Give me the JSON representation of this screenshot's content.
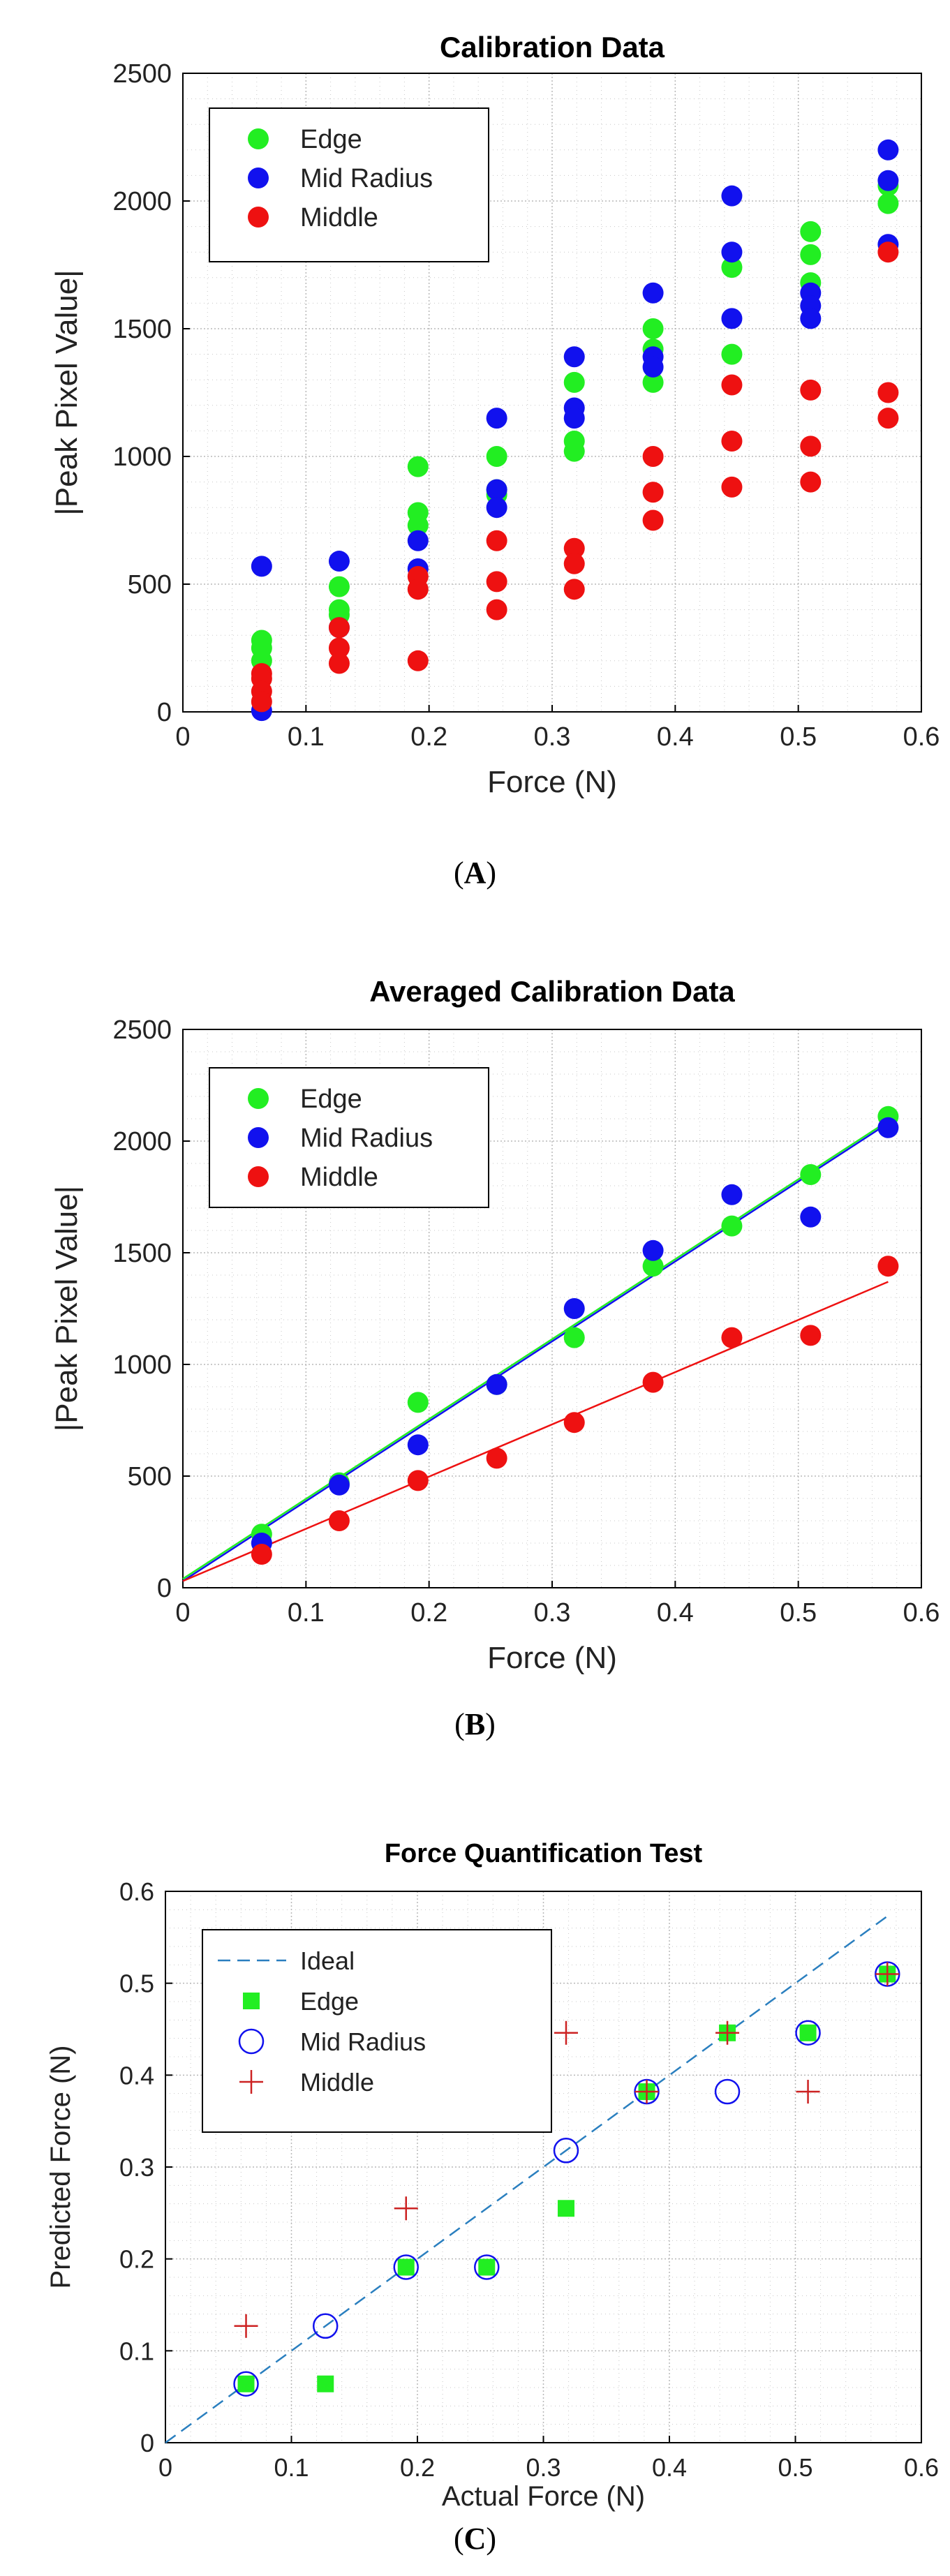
{
  "chart_data": [
    {
      "id": "A",
      "type": "scatter",
      "title": "Calibration Data",
      "xlabel": "Force (N)",
      "ylabel": "|Peak Pixel Value|",
      "xlim": [
        0,
        0.6
      ],
      "ylim": [
        0,
        2500
      ],
      "xticks": [
        "0",
        "0.1",
        "0.2",
        "0.3",
        "0.4",
        "0.5",
        "0.6"
      ],
      "yticks": [
        "0",
        "500",
        "1000",
        "1500",
        "2000",
        "2500"
      ],
      "grid": true,
      "legend_position": "top-left",
      "series": [
        {
          "name": "Edge",
          "color": "#22ee22",
          "marker": "filled-circle",
          "points": [
            [
              0.064,
              280
            ],
            [
              0.064,
              250
            ],
            [
              0.064,
              200
            ],
            [
              0.127,
              490
            ],
            [
              0.127,
              400
            ],
            [
              0.127,
              380
            ],
            [
              0.191,
              960
            ],
            [
              0.191,
              780
            ],
            [
              0.191,
              730
            ],
            [
              0.255,
              1000
            ],
            [
              0.255,
              870
            ],
            [
              0.255,
              850
            ],
            [
              0.318,
              1290
            ],
            [
              0.318,
              1060
            ],
            [
              0.318,
              1020
            ],
            [
              0.382,
              1500
            ],
            [
              0.382,
              1420
            ],
            [
              0.382,
              1290
            ],
            [
              0.446,
              1740
            ],
            [
              0.446,
              1400
            ],
            [
              0.51,
              1880
            ],
            [
              0.51,
              1790
            ],
            [
              0.51,
              1680
            ],
            [
              0.573,
              2060
            ],
            [
              0.573,
              1990
            ]
          ]
        },
        {
          "name": "Mid Radius",
          "color": "#1111ee",
          "marker": "filled-circle",
          "points": [
            [
              0.064,
              570
            ],
            [
              0.064,
              5
            ],
            [
              0.127,
              590
            ],
            [
              0.127,
              330
            ],
            [
              0.191,
              670
            ],
            [
              0.191,
              560
            ],
            [
              0.255,
              1150
            ],
            [
              0.255,
              870
            ],
            [
              0.255,
              800
            ],
            [
              0.318,
              1390
            ],
            [
              0.318,
              1190
            ],
            [
              0.318,
              1150
            ],
            [
              0.382,
              1640
            ],
            [
              0.382,
              1390
            ],
            [
              0.382,
              1350
            ],
            [
              0.446,
              2020
            ],
            [
              0.446,
              1800
            ],
            [
              0.446,
              1540
            ],
            [
              0.51,
              1640
            ],
            [
              0.51,
              1590
            ],
            [
              0.51,
              1540
            ],
            [
              0.573,
              2200
            ],
            [
              0.573,
              2080
            ],
            [
              0.573,
              1830
            ]
          ]
        },
        {
          "name": "Middle",
          "color": "#ee1111",
          "marker": "filled-circle",
          "points": [
            [
              0.064,
              150
            ],
            [
              0.064,
              130
            ],
            [
              0.064,
              80
            ],
            [
              0.064,
              40
            ],
            [
              0.127,
              330
            ],
            [
              0.127,
              250
            ],
            [
              0.127,
              190
            ],
            [
              0.191,
              530
            ],
            [
              0.191,
              480
            ],
            [
              0.191,
              200
            ],
            [
              0.255,
              670
            ],
            [
              0.255,
              510
            ],
            [
              0.255,
              400
            ],
            [
              0.318,
              640
            ],
            [
              0.318,
              580
            ],
            [
              0.318,
              480
            ],
            [
              0.382,
              1000
            ],
            [
              0.382,
              860
            ],
            [
              0.382,
              750
            ],
            [
              0.446,
              1280
            ],
            [
              0.446,
              1060
            ],
            [
              0.446,
              880
            ],
            [
              0.51,
              1260
            ],
            [
              0.51,
              1040
            ],
            [
              0.51,
              900
            ],
            [
              0.573,
              1800
            ],
            [
              0.573,
              1250
            ],
            [
              0.573,
              1150
            ]
          ]
        }
      ]
    },
    {
      "id": "B",
      "type": "scatter",
      "title": "Averaged Calibration Data",
      "xlabel": "Force (N)",
      "ylabel": "|Peak Pixel Value|",
      "xlim": [
        0,
        0.6
      ],
      "ylim": [
        0,
        2500
      ],
      "xticks": [
        "0",
        "0.1",
        "0.2",
        "0.3",
        "0.4",
        "0.5",
        "0.6"
      ],
      "yticks": [
        "0",
        "500",
        "1000",
        "1500",
        "2000",
        "2500"
      ],
      "grid": true,
      "legend_position": "top-left",
      "series": [
        {
          "name": "Edge",
          "color": "#22ee22",
          "marker": "filled-circle",
          "points": [
            [
              0.064,
              240
            ],
            [
              0.127,
              470
            ],
            [
              0.191,
              830
            ],
            [
              0.255,
              910
            ],
            [
              0.318,
              1120
            ],
            [
              0.382,
              1440
            ],
            [
              0.446,
              1620
            ],
            [
              0.51,
              1850
            ],
            [
              0.573,
              2110
            ]
          ],
          "fit": [
            [
              0,
              40
            ],
            [
              0.573,
              2090
            ]
          ]
        },
        {
          "name": "Mid Radius",
          "color": "#1111ee",
          "marker": "filled-circle",
          "points": [
            [
              0.064,
              200
            ],
            [
              0.127,
              460
            ],
            [
              0.191,
              640
            ],
            [
              0.255,
              910
            ],
            [
              0.318,
              1250
            ],
            [
              0.382,
              1510
            ],
            [
              0.446,
              1760
            ],
            [
              0.51,
              1660
            ],
            [
              0.573,
              2060
            ]
          ],
          "fit": [
            [
              0,
              30
            ],
            [
              0.573,
              2080
            ]
          ]
        },
        {
          "name": "Middle",
          "color": "#ee1111",
          "marker": "filled-circle",
          "points": [
            [
              0.064,
              150
            ],
            [
              0.127,
              300
            ],
            [
              0.191,
              480
            ],
            [
              0.255,
              580
            ],
            [
              0.318,
              740
            ],
            [
              0.382,
              920
            ],
            [
              0.446,
              1120
            ],
            [
              0.51,
              1130
            ],
            [
              0.573,
              1440
            ]
          ],
          "fit": [
            [
              0,
              30
            ],
            [
              0.573,
              1370
            ]
          ]
        }
      ]
    },
    {
      "id": "C",
      "type": "scatter",
      "title": "Force Quantification Test",
      "xlabel": "Actual Force (N)",
      "ylabel": "Predicted Force (N)",
      "xlim": [
        0,
        0.6
      ],
      "ylim": [
        0,
        0.6
      ],
      "xticks": [
        "0",
        "0.1",
        "0.2",
        "0.3",
        "0.4",
        "0.5",
        "0.6"
      ],
      "yticks": [
        "0",
        "0.1",
        "0.2",
        "0.3",
        "0.4",
        "0.5",
        "0.6"
      ],
      "grid": true,
      "legend_position": "top-left",
      "ideal": {
        "name": "Ideal",
        "color": "#2a7fbf",
        "line": [
          [
            0,
            0
          ],
          [
            0.573,
            0.573
          ]
        ]
      },
      "series": [
        {
          "name": "Edge",
          "color": "#22ee22",
          "marker": "filled-square",
          "points": [
            [
              0.064,
              0.064
            ],
            [
              0.127,
              0.064
            ],
            [
              0.191,
              0.191
            ],
            [
              0.255,
              0.191
            ],
            [
              0.318,
              0.255
            ],
            [
              0.382,
              0.382
            ],
            [
              0.446,
              0.446
            ],
            [
              0.51,
              0.446
            ],
            [
              0.573,
              0.51
            ]
          ]
        },
        {
          "name": "Mid Radius",
          "color": "#1111ee",
          "marker": "open-circle",
          "points": [
            [
              0.064,
              0.064
            ],
            [
              0.127,
              0.127
            ],
            [
              0.191,
              0.191
            ],
            [
              0.255,
              0.191
            ],
            [
              0.318,
              0.318
            ],
            [
              0.382,
              0.382
            ],
            [
              0.446,
              0.382
            ],
            [
              0.51,
              0.446
            ],
            [
              0.573,
              0.51
            ]
          ]
        },
        {
          "name": "Middle",
          "color": "#cc2222",
          "marker": "plus",
          "points": [
            [
              0.064,
              0.127
            ],
            [
              0.191,
              0.255
            ],
            [
              0.318,
              0.446
            ],
            [
              0.382,
              0.382
            ],
            [
              0.446,
              0.446
            ],
            [
              0.51,
              0.382
            ],
            [
              0.573,
              0.51
            ]
          ]
        }
      ]
    }
  ],
  "captions": {
    "A": {
      "open": "(",
      "letter": "A",
      "close": ")"
    },
    "B": {
      "open": "(",
      "letter": "B",
      "close": ")"
    },
    "C": {
      "open": "(",
      "letter": "C",
      "close": ")"
    }
  }
}
